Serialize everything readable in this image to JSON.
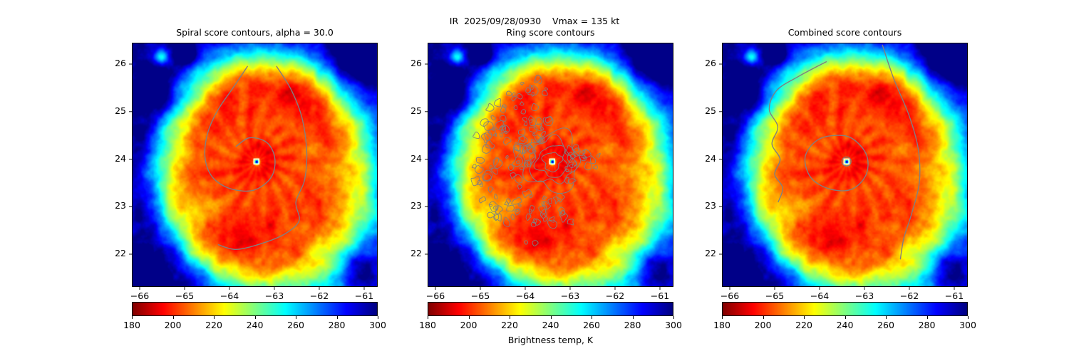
{
  "figure": {
    "suptitle": "IR  2025/09/28/0930    Vmax = 135 kt",
    "background": "#ffffff"
  },
  "chart_data": {
    "type": "heatmap",
    "title": "IR  2025/09/28/0930    Vmax = 135 kt",
    "panels": [
      {
        "title": "Spiral score contours, alpha = 30.0",
        "contours": "spiral"
      },
      {
        "title": "Ring score contours",
        "contours": "ring"
      },
      {
        "title": "Combined score contours",
        "contours": "combined"
      }
    ],
    "x_ticks": [
      -66,
      -65,
      -64,
      -63,
      -62,
      -61
    ],
    "x_tick_labels": [
      "−66",
      "−65",
      "−64",
      "−63",
      "−62",
      "−61"
    ],
    "y_ticks": [
      22,
      23,
      24,
      25,
      26
    ],
    "y_tick_labels": [
      "22",
      "23",
      "24",
      "25",
      "26"
    ],
    "xlim": [
      -66.17,
      -60.71
    ],
    "ylim": [
      21.33,
      26.45
    ],
    "grid": false,
    "storm_center_lonlat": [
      -63.4,
      23.95
    ],
    "vmax_kt": 135,
    "center_marker": "white-square",
    "colorbar": {
      "vmin": 180,
      "vmax": 300,
      "ticks": [
        180,
        200,
        220,
        240,
        260,
        280,
        300
      ],
      "label": "Brightness temp, K",
      "colormap": "jet_r"
    },
    "contour_color": "#808080",
    "overlays": {
      "spiral_paths": [
        [
          [
            -62.95,
            25.95
          ],
          [
            -62.62,
            25.45
          ],
          [
            -62.38,
            24.85
          ],
          [
            -62.28,
            24.15
          ],
          [
            -62.33,
            23.55
          ],
          [
            -62.52,
            23.1
          ],
          [
            -62.45,
            22.7
          ],
          [
            -62.78,
            22.42
          ],
          [
            -63.3,
            22.22
          ],
          [
            -63.85,
            22.1
          ],
          [
            -64.25,
            22.2
          ]
        ],
        [
          [
            -63.6,
            25.95
          ],
          [
            -63.92,
            25.5
          ],
          [
            -64.28,
            25.0
          ],
          [
            -64.5,
            24.5
          ],
          [
            -64.54,
            24.0
          ],
          [
            -64.36,
            23.6
          ],
          [
            -63.95,
            23.37
          ],
          [
            -63.45,
            23.35
          ],
          [
            -63.07,
            23.62
          ],
          [
            -62.99,
            24.02
          ],
          [
            -63.17,
            24.35
          ],
          [
            -63.55,
            24.45
          ],
          [
            -63.85,
            24.27
          ]
        ]
      ],
      "combined_open_paths": [
        [
          [
            -62.6,
            26.4
          ],
          [
            -62.35,
            25.7
          ],
          [
            -62.0,
            24.9
          ],
          [
            -61.8,
            24.2
          ],
          [
            -61.78,
            23.5
          ],
          [
            -61.95,
            22.85
          ],
          [
            -62.12,
            22.35
          ],
          [
            -62.2,
            21.9
          ]
        ],
        [
          [
            -63.85,
            26.05
          ],
          [
            -64.45,
            25.75
          ],
          [
            -64.95,
            25.45
          ],
          [
            -65.12,
            25.05
          ],
          [
            -64.93,
            24.68
          ],
          [
            -65.06,
            24.32
          ],
          [
            -64.88,
            24.0
          ],
          [
            -65.0,
            23.68
          ],
          [
            -64.82,
            23.4
          ],
          [
            -64.92,
            23.1
          ]
        ]
      ],
      "combined_closed_loop": [
        [
          -63.6,
          24.5
        ],
        [
          -64.05,
          24.4
        ],
        [
          -64.32,
          24.05
        ],
        [
          -64.2,
          23.62
        ],
        [
          -63.8,
          23.38
        ],
        [
          -63.3,
          23.36
        ],
        [
          -62.97,
          23.66
        ],
        [
          -62.95,
          24.08
        ],
        [
          -63.25,
          24.42
        ]
      ],
      "eye_ring_radius_deg": 0.1,
      "ring_radii_deg": [
        0.2,
        0.33,
        0.47,
        0.62
      ],
      "ring_clusters": [
        {
          "aMin": 95,
          "aMax": 260,
          "rMin": 0.85,
          "rMax": 1.8,
          "count": 95
        },
        {
          "aMin": 100,
          "aMax": 210,
          "rMin": 0.45,
          "rMax": 0.85,
          "count": 28
        },
        {
          "aMin": 255,
          "aMax": 305,
          "rMin": 0.75,
          "rMax": 1.35,
          "count": 14
        },
        {
          "aMin": -25,
          "aMax": 35,
          "rMin": 0.5,
          "rMax": 1.05,
          "count": 9
        },
        {
          "aMin": -80,
          "aMax": 60,
          "rMin": 0.35,
          "rMax": 0.6,
          "count": 10
        }
      ],
      "warm_cold_blobs": [
        {
          "lon": -65.5,
          "lat": 26.15,
          "amp": -42,
          "r": 0.17
        },
        {
          "lon": -64.95,
          "lat": 26.22,
          "amp": 52,
          "r": 0.2
        },
        {
          "lon": -64.6,
          "lat": 22.85,
          "amp": 20,
          "r": 0.45
        },
        {
          "lon": -65.45,
          "lat": 25.25,
          "amp": 22,
          "r": 0.4
        },
        {
          "lon": -61.15,
          "lat": 26.1,
          "amp": 25,
          "r": 0.45
        },
        {
          "lon": -66.0,
          "lat": 21.6,
          "amp": 30,
          "r": 0.5
        },
        {
          "lon": -61.2,
          "lat": 21.7,
          "amp": 28,
          "r": 0.45
        }
      ]
    }
  }
}
